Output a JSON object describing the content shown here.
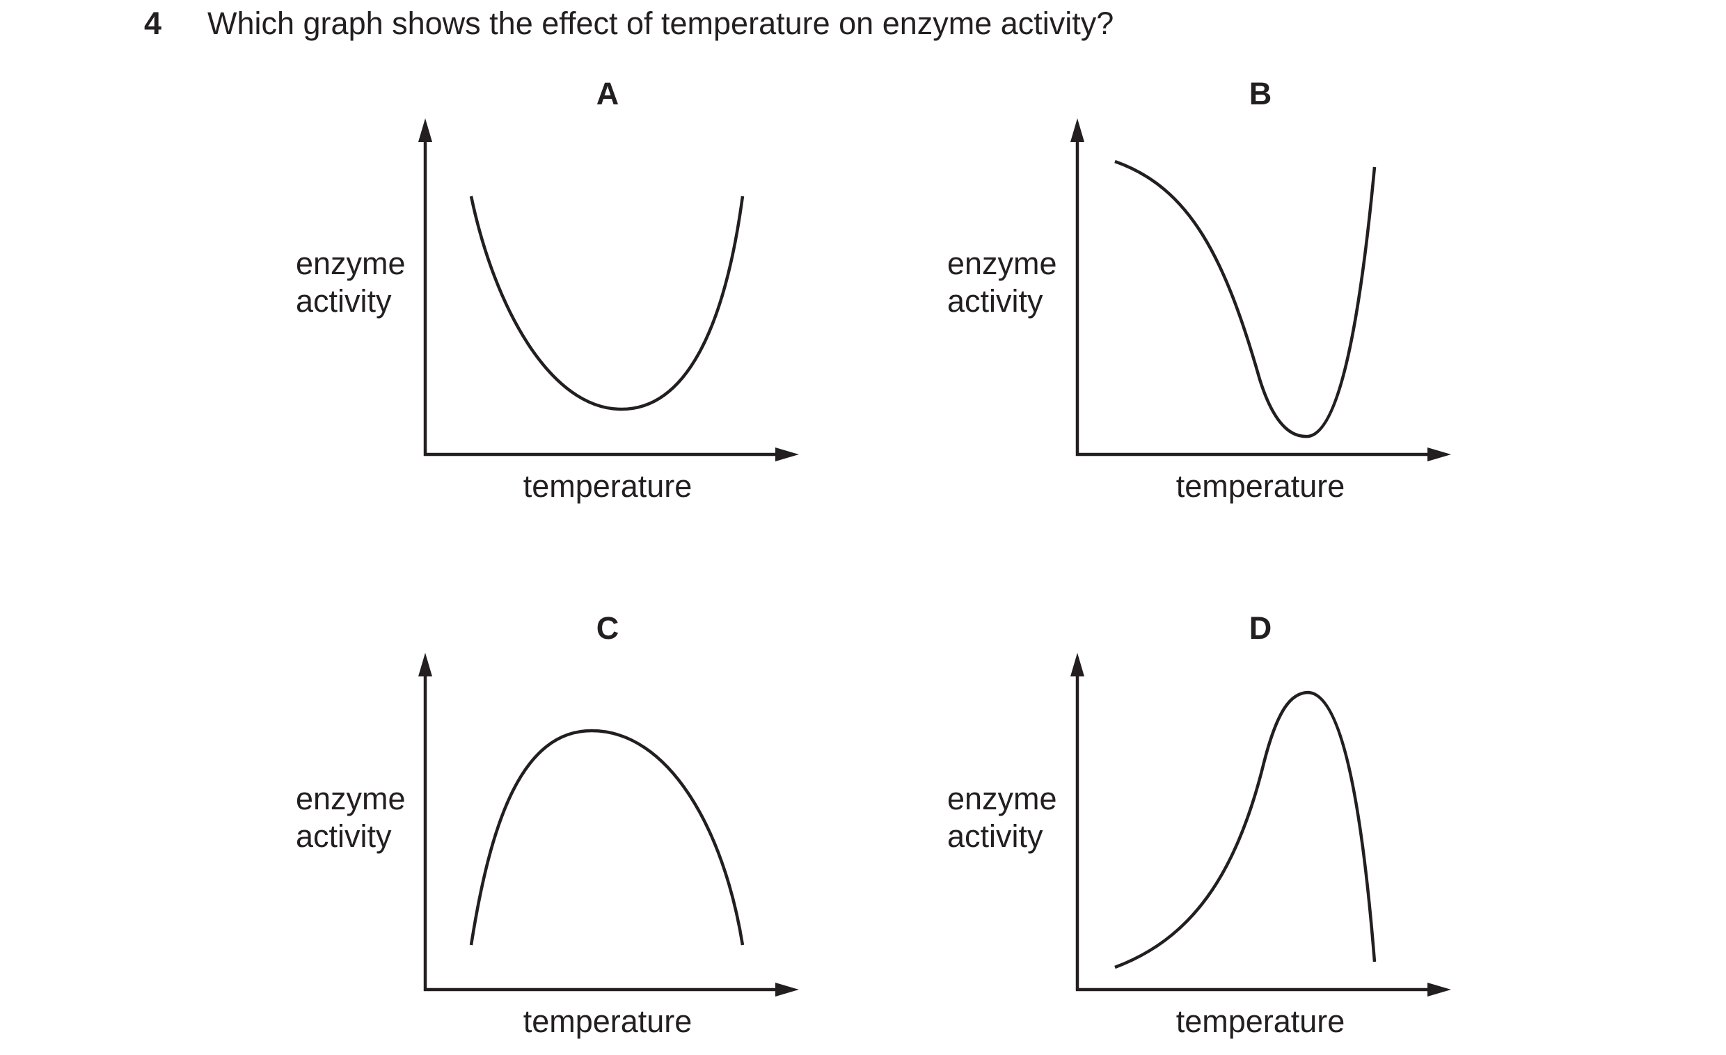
{
  "question": {
    "number": "4",
    "text": "Which graph shows the effect of temperature on enzyme activity?"
  },
  "axis_labels": {
    "y_line1": "enzyme",
    "y_line2": "activity",
    "x": "temperature"
  },
  "chart_data": [
    {
      "type": "line",
      "label": "A",
      "xlabel": "temperature",
      "ylabel": "enzyme activity",
      "curve": "u-shaped: high at low temperature, falls to a minimum in the middle, rises to high at high temperature"
    },
    {
      "type": "line",
      "label": "B",
      "xlabel": "temperature",
      "ylabel": "enzyme activity",
      "curve": "high at low temperature, falls steeply to a sharp minimum at higher temperature, then rises steeply"
    },
    {
      "type": "line",
      "label": "C",
      "xlabel": "temperature",
      "ylabel": "enzyme activity",
      "curve": "inverted u-shaped: low at low temperature, rises to a broad maximum in the middle, falls to low at high temperature"
    },
    {
      "type": "line",
      "label": "D",
      "xlabel": "temperature",
      "ylabel": "enzyme activity",
      "curve": "low at low temperature, rises gradually then steeply to a sharp peak at higher temperature, then falls steeply"
    }
  ]
}
